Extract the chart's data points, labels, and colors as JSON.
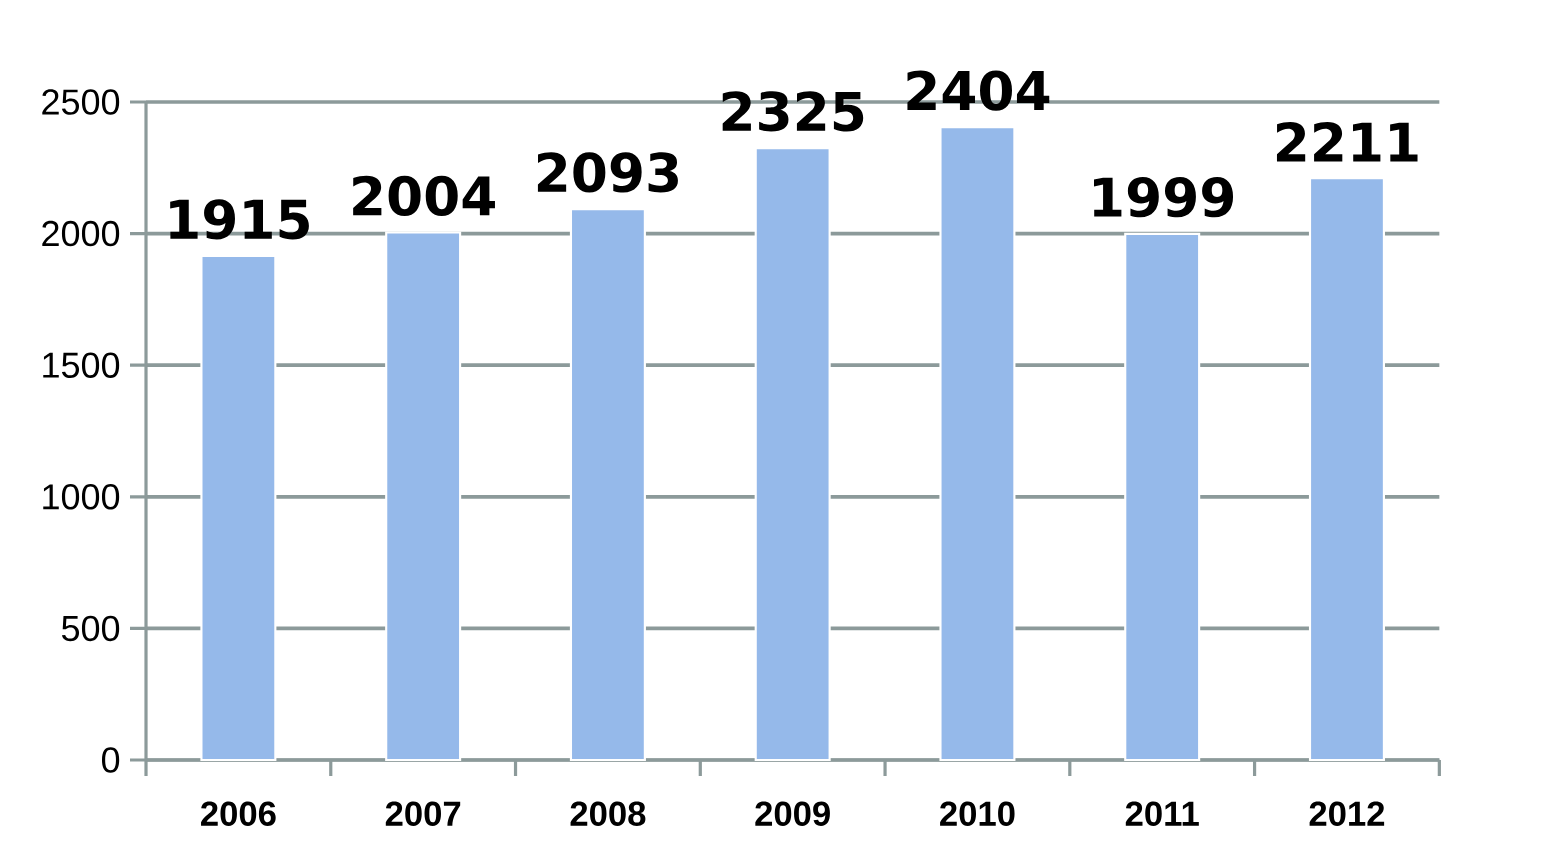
{
  "chart_data": {
    "type": "bar",
    "categories": [
      "2006",
      "2007",
      "2008",
      "2009",
      "2010",
      "2011",
      "2012"
    ],
    "values": [
      1915,
      2004,
      2093,
      2325,
      2404,
      1999,
      2211
    ],
    "color": "#95b9ea",
    "ylim": [
      0,
      2500
    ],
    "yticks": [
      0,
      500,
      1000,
      1500,
      2000,
      2500
    ],
    "grid": "y",
    "data_labels": true
  }
}
